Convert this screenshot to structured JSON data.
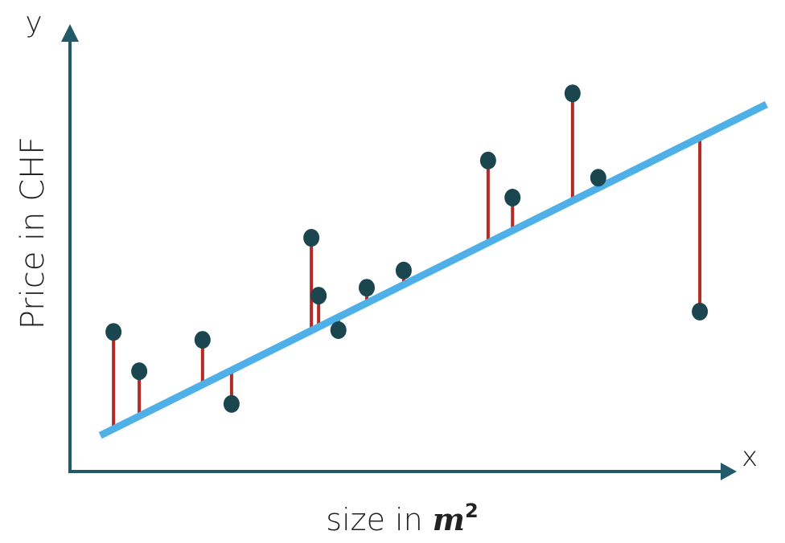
{
  "chart_data": {
    "type": "scatter",
    "y_axis_letter": "y",
    "x_axis_letter": "x",
    "y_label": "Price in CHF",
    "x_label": "size in",
    "x_label_unit": "m",
    "x_label_exp": "2",
    "x": [
      6.6,
      10.5,
      20.1,
      24.5,
      36.6,
      37.7,
      40.7,
      45.0,
      50.6,
      63.4,
      67.1,
      76.2,
      80.1,
      95.5
    ],
    "y": [
      31.6,
      22.7,
      29.8,
      15.3,
      52.9,
      39.8,
      32.0,
      41.6,
      45.5,
      70.4,
      62.0,
      85.6,
      66.5,
      36.2
    ],
    "fit": {
      "intercept": 4.75,
      "slope": 0.742,
      "x": [
        4.6,
        105.6
      ],
      "color": "#4fb0e8"
    },
    "point_color": "#1b4650",
    "residual_color": "#b52a24",
    "axis_color": "#235a6a",
    "xlim": [
      0,
      100
    ],
    "ylim": [
      0,
      100
    ]
  }
}
